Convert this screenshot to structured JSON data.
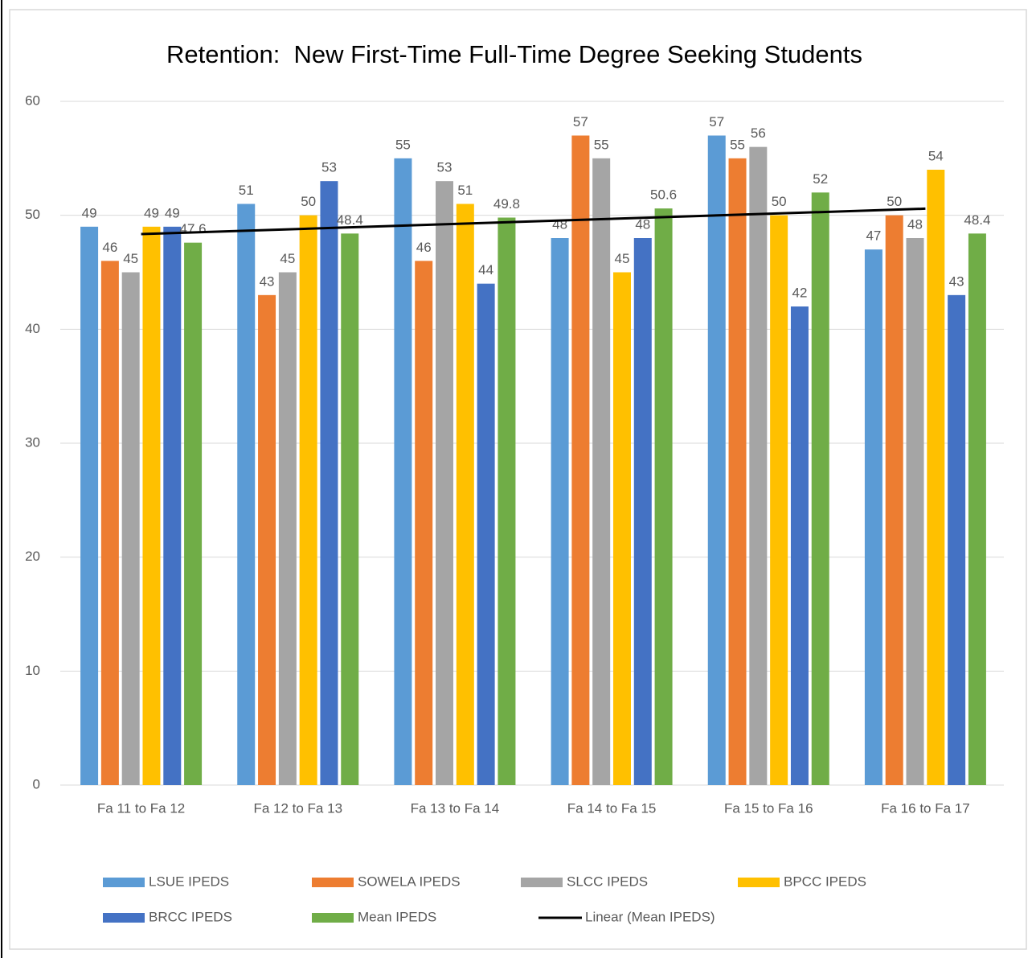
{
  "chart_data": {
    "type": "bar",
    "title": "Retention:  New First-Time Full-Time Degree Seeking Students",
    "categories": [
      "Fa 11 to Fa 12",
      "Fa 12 to Fa 13",
      "Fa 13 to Fa 14",
      "Fa 14 to Fa 15",
      "Fa 15 to Fa 16",
      "Fa 16 to Fa 17"
    ],
    "series": [
      {
        "name": "LSUE IPEDS",
        "color": "#5b9bd5",
        "values": [
          49,
          51,
          55,
          48,
          57,
          47
        ]
      },
      {
        "name": "SOWELA IPEDS",
        "color": "#ed7d31",
        "values": [
          46,
          43,
          46,
          57,
          55,
          50
        ]
      },
      {
        "name": "SLCC IPEDS",
        "color": "#a5a5a5",
        "values": [
          45,
          45,
          53,
          55,
          56,
          48
        ]
      },
      {
        "name": "BPCC IPEDS",
        "color": "#ffc000",
        "values": [
          49,
          50,
          51,
          45,
          50,
          54
        ]
      },
      {
        "name": "BRCC IPEDS",
        "color": "#4472c4",
        "values": [
          49,
          53,
          44,
          48,
          42,
          43
        ]
      },
      {
        "name": "Mean IPEDS",
        "color": "#70ad47",
        "values": [
          47.6,
          48.4,
          49.8,
          50.6,
          52,
          48.4
        ]
      }
    ],
    "trendline": {
      "name": "Linear (Mean IPEDS)",
      "color": "#000000",
      "series": 5
    },
    "ylim": [
      0,
      60
    ],
    "yticks": [
      0,
      10,
      20,
      30,
      40,
      50,
      60
    ],
    "grid": true,
    "legend": "bottom"
  }
}
